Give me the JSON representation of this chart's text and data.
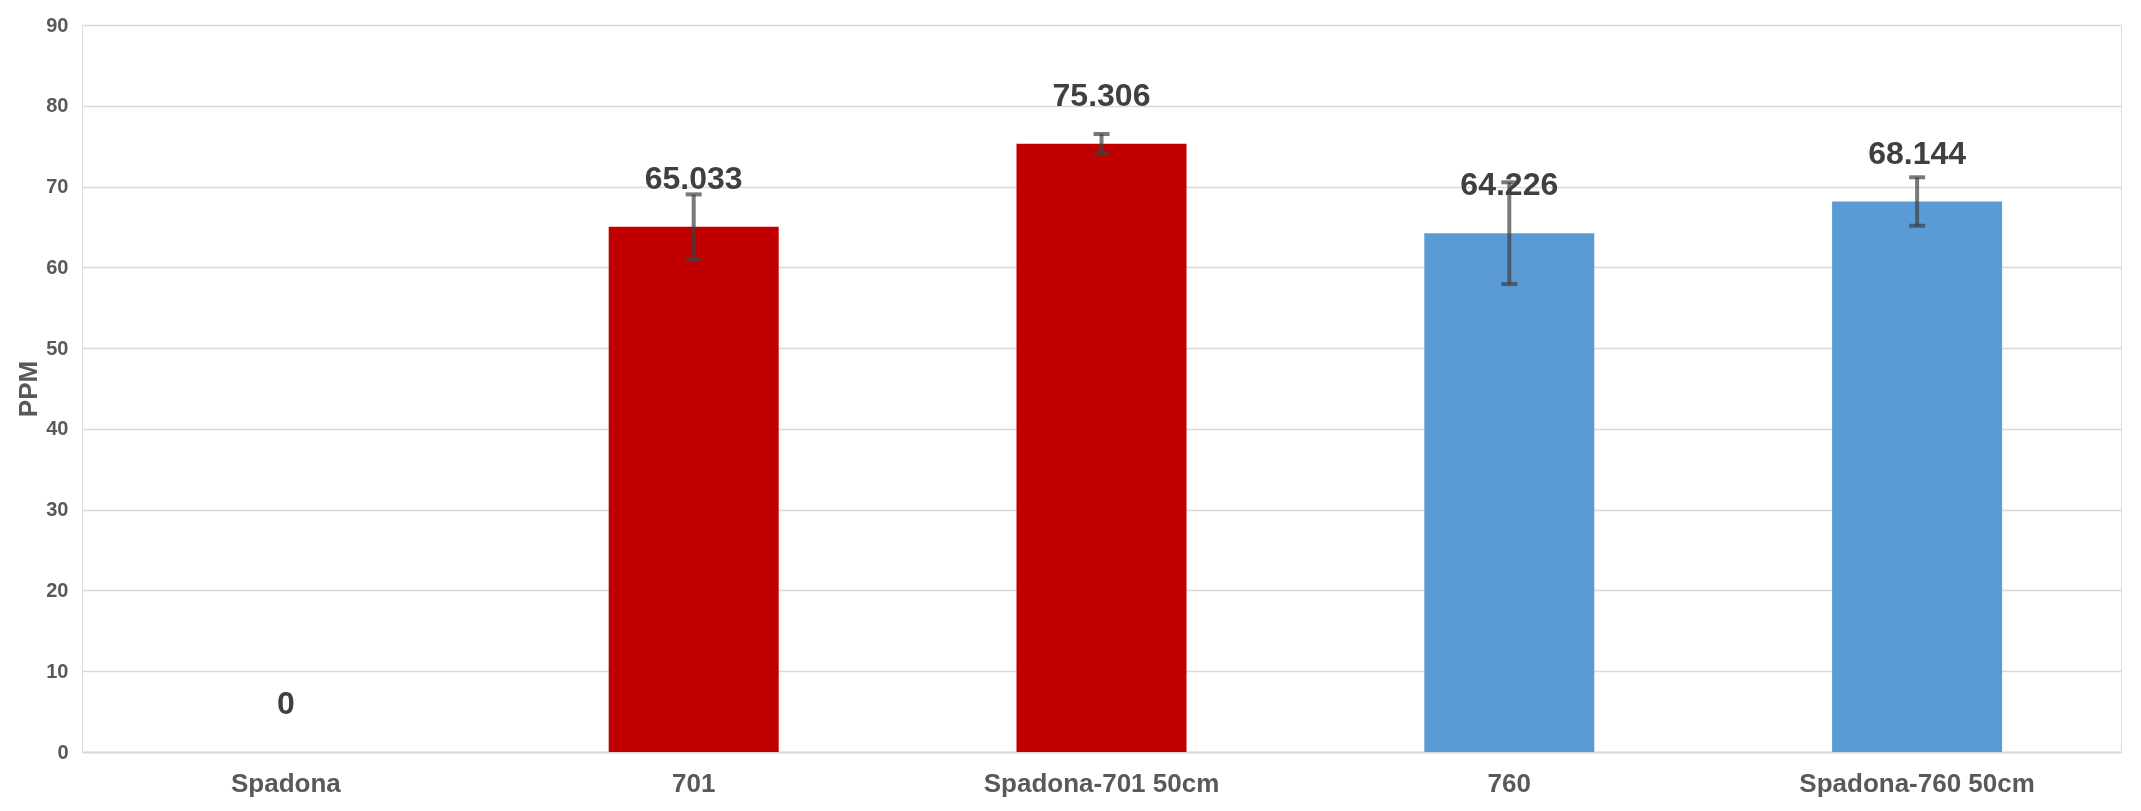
{
  "chart_data": {
    "type": "bar",
    "ylabel": "PPM",
    "categories": [
      "Spadona",
      "701",
      "Spadona-701 50cm",
      "760",
      "Spadona-760 50cm"
    ],
    "values": [
      0,
      65.033,
      75.306,
      64.226,
      68.144
    ],
    "colors": [
      "#c00000",
      "#c00000",
      "#c00000",
      "#5b9bd5",
      "#5b9bd5"
    ],
    "errors": [
      null,
      4,
      1.2,
      6.3,
      3
    ],
    "ylim": [
      0,
      90
    ],
    "yticks": [
      0,
      10,
      20,
      30,
      40,
      50,
      60,
      70,
      80,
      90
    ],
    "grid": "y",
    "data_labels": true
  }
}
